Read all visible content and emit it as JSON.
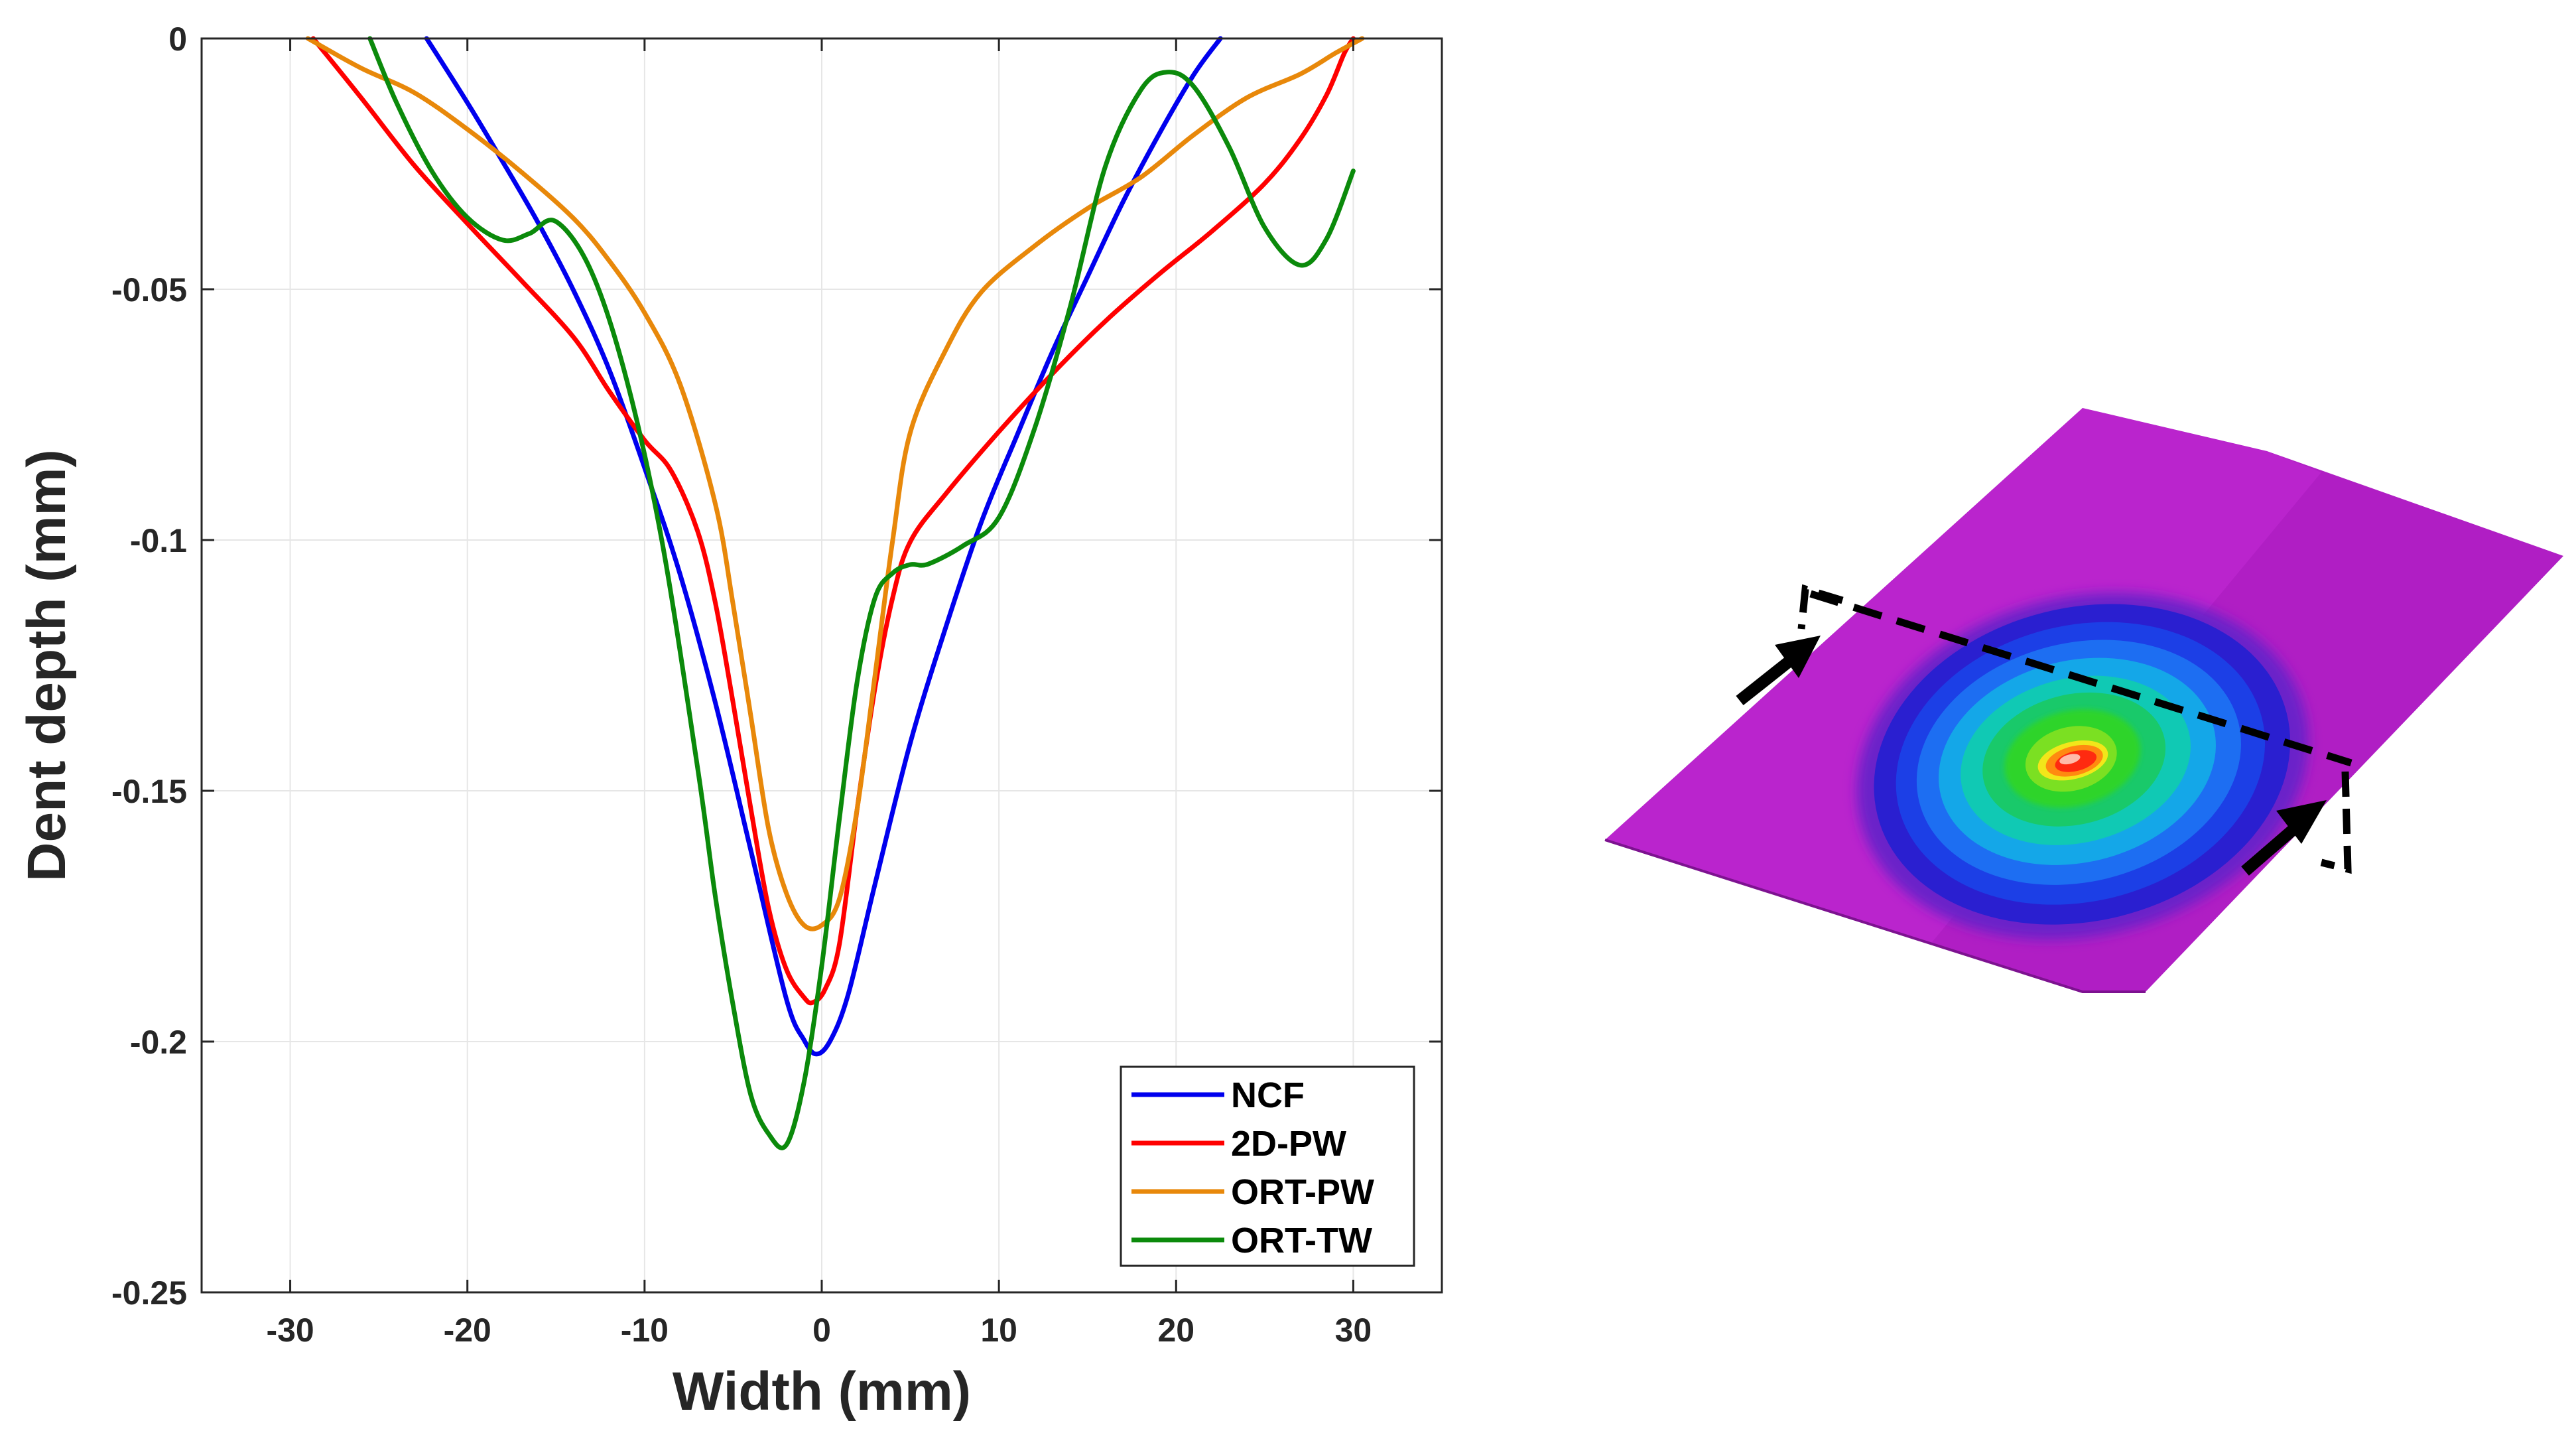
{
  "chart_data": {
    "type": "line",
    "title": "",
    "xlabel": "Width (mm)",
    "ylabel": "Dent depth (mm)",
    "xlim": [
      -35,
      35
    ],
    "ylim": [
      -0.25,
      0
    ],
    "grid": true,
    "legend_position": "bottom-right",
    "x_ticks": [
      -30,
      -20,
      -10,
      0,
      10,
      20,
      30
    ],
    "x_tick_labels": [
      "-30",
      "-20",
      "-10",
      "0",
      "10",
      "20",
      "30"
    ],
    "y_ticks": [
      0,
      -0.05,
      -0.1,
      -0.15,
      -0.2,
      -0.25
    ],
    "y_tick_labels": [
      "0",
      "-0.05",
      "-0.1",
      "-0.15",
      "-0.2",
      "-0.25"
    ],
    "series": [
      {
        "name": "NCF",
        "color": "#0000ee",
        "x": [
          -22.3,
          -20,
          -18,
          -16,
          -14,
          -12,
          -10,
          -8,
          -6,
          -4,
          -2,
          -1,
          -0.3,
          0.5,
          1.5,
          3,
          5,
          7,
          9,
          11,
          13,
          15,
          17,
          19,
          21,
          22.5
        ],
        "y": [
          0,
          -0.0128,
          -0.0246,
          -0.0368,
          -0.0503,
          -0.066,
          -0.0856,
          -0.1068,
          -0.1325,
          -0.1619,
          -0.1915,
          -0.1997,
          -0.2025,
          -0.1997,
          -0.1905,
          -0.1687,
          -0.1404,
          -0.1174,
          -0.0965,
          -0.0793,
          -0.0626,
          -0.0475,
          -0.0326,
          -0.0193,
          -0.0072,
          0
        ]
      },
      {
        "name": "2D-PW",
        "color": "#ff0000",
        "x": [
          -28.7,
          -26,
          -23,
          -20,
          -17,
          -14,
          -12,
          -10,
          -8.5,
          -7,
          -6,
          -5,
          -4,
          -3,
          -2,
          -1,
          -0.5,
          0.2,
          1,
          2,
          3,
          4,
          5,
          7,
          10,
          13,
          16,
          19,
          22,
          25,
          27,
          28.5,
          29.5,
          30
        ],
        "y": [
          0,
          -0.0118,
          -0.0253,
          -0.0369,
          -0.0481,
          -0.0596,
          -0.0703,
          -0.0801,
          -0.0862,
          -0.0983,
          -0.1126,
          -0.1325,
          -0.1536,
          -0.1734,
          -0.1856,
          -0.1912,
          -0.1922,
          -0.1895,
          -0.1805,
          -0.1536,
          -0.1296,
          -0.1115,
          -0.1003,
          -0.0908,
          -0.0784,
          -0.0669,
          -0.0564,
          -0.0471,
          -0.0385,
          -0.0289,
          -0.0201,
          -0.0112,
          -0.0029,
          0
        ]
      },
      {
        "name": "ORT-PW",
        "color": "#e8880a",
        "x": [
          -29,
          -26,
          -23,
          -20,
          -17,
          -14,
          -12,
          -10,
          -8,
          -6,
          -5,
          -4,
          -3,
          -2,
          -1,
          0,
          1,
          2,
          3,
          4,
          5,
          7,
          9,
          12,
          15,
          18,
          21,
          24,
          27,
          29,
          30.5
        ],
        "y": [
          0,
          -0.0059,
          -0.0108,
          -0.0181,
          -0.0265,
          -0.0359,
          -0.0443,
          -0.0547,
          -0.0689,
          -0.0929,
          -0.1129,
          -0.1351,
          -0.1576,
          -0.1704,
          -0.1768,
          -0.1768,
          -0.1715,
          -0.1536,
          -0.1272,
          -0.1001,
          -0.0785,
          -0.0621,
          -0.0506,
          -0.0414,
          -0.0339,
          -0.0277,
          -0.0192,
          -0.0118,
          -0.0071,
          -0.0029,
          0
        ]
      },
      {
        "name": "ORT-TW",
        "color": "#0b8a0b",
        "x": [
          -25.5,
          -24,
          -22,
          -20,
          -18,
          -16.5,
          -15,
          -13,
          -11,
          -9,
          -7,
          -6,
          -5,
          -4,
          -3,
          -2,
          -1,
          0,
          1,
          2,
          3,
          4,
          5,
          6,
          8,
          10,
          12,
          14,
          16,
          18,
          19.5,
          21,
          23,
          25,
          27,
          28.5,
          30
        ],
        "y": [
          0,
          -0.0128,
          -0.0265,
          -0.0357,
          -0.0402,
          -0.0389,
          -0.0365,
          -0.0465,
          -0.0682,
          -0.1006,
          -0.1456,
          -0.1712,
          -0.1928,
          -0.2107,
          -0.2184,
          -0.2206,
          -0.2081,
          -0.1849,
          -0.1555,
          -0.1282,
          -0.1116,
          -0.1066,
          -0.1049,
          -0.1048,
          -0.1011,
          -0.0955,
          -0.0779,
          -0.0538,
          -0.0256,
          -0.0103,
          -0.0067,
          -0.0096,
          -0.0217,
          -0.0377,
          -0.0452,
          -0.0399,
          -0.0264
        ]
      }
    ]
  }
}
